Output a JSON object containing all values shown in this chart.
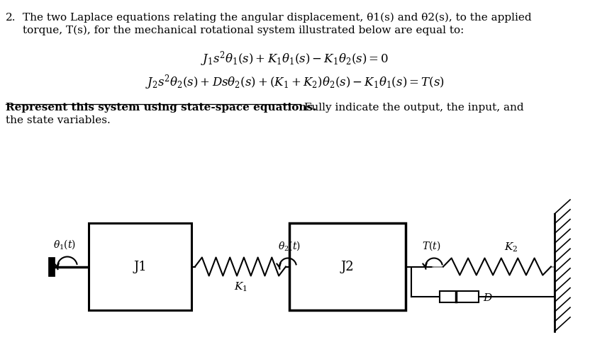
{
  "bg_color": "#ffffff",
  "text_color": "#000000",
  "font_size_body": 11,
  "font_size_eq": 12,
  "line1a": "2.",
  "line1b": "The two Laplace equations relating the angular displacement, θ1(s) and θ2(s), to the applied",
  "line2": "torque, T(s), for the mechanical rotational system illustrated below are equal to:",
  "eq1": "$J_1s^2\\theta_1(s) + K_1\\theta_1(s) - K_1\\theta_2(s) = 0$",
  "eq2": "$J_2s^2\\theta_2(s) + Ds\\theta_2(s) + (K_1+K_2)\\theta_2(s) - K_1\\theta_1(s) = T(s)$",
  "bold_text": "Represent this system using state-space equations.",
  "normal_text": " Fully indicate the output, the input, and",
  "line_last": "the state variables.",
  "j1_label": "J1",
  "j2_label": "J2",
  "k1_label": "$K_1$",
  "k2_label": "$K_2$",
  "d_label": "$D$",
  "theta1_label": "$\\theta_1(t)$",
  "theta2_label": "$\\theta_2(t)$",
  "T_label": "$T(t)$"
}
